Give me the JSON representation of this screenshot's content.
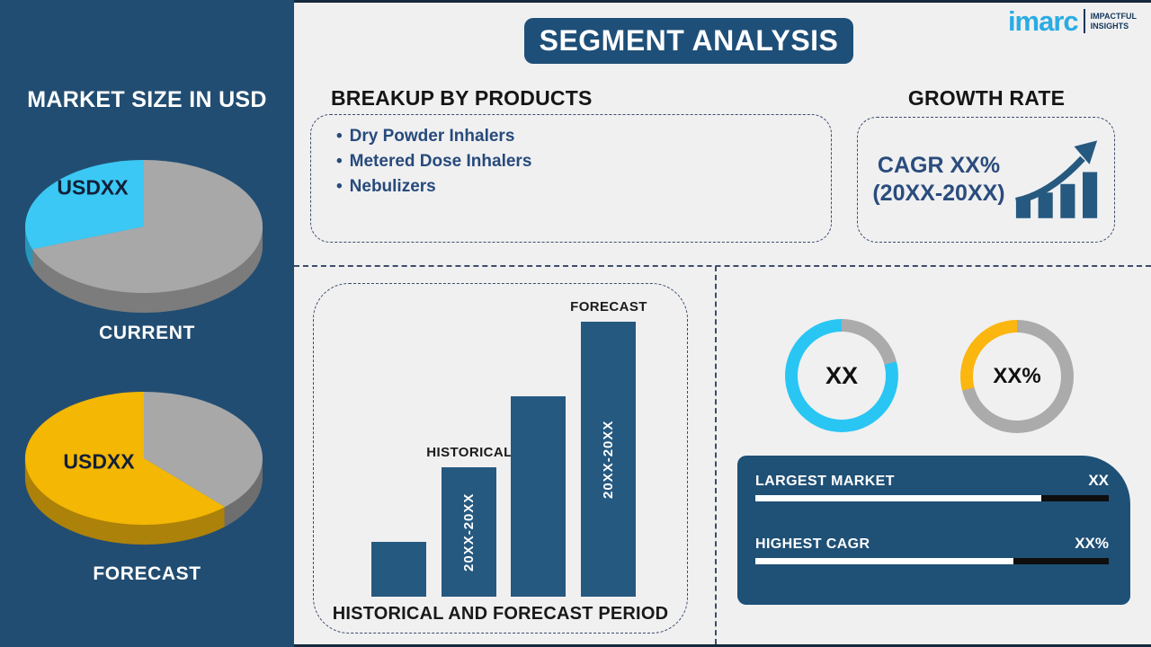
{
  "header": {
    "title": "SEGMENT ANALYSIS"
  },
  "logo": {
    "brand": "imarc",
    "tagline_line1": "IMPACTFUL",
    "tagline_line2": "INSIGHTS",
    "brand_color": "#2AACE3"
  },
  "sidebar": {
    "title": "MARKET SIZE IN USD"
  },
  "products": {
    "title": "BREAKUP BY PRODUCTS",
    "items": [
      "Dry Powder Inhalers",
      "Metered Dose Inhalers",
      "Nebulizers"
    ]
  },
  "growth": {
    "title": "GROWTH RATE",
    "cagr_line1": "CAGR XX%",
    "cagr_line2": "(20XX-20XX)"
  },
  "colors": {
    "sidebar_blue": "#224D72",
    "panel_blue": "#1F5076",
    "bar_blue": "#265980",
    "navy_text": "#2A4C7D",
    "cyan": "#3BC8F4",
    "yellow": "#F3B704",
    "gray": "#A8A8A8",
    "background": "#F0F0F1"
  },
  "chart_data": [
    {
      "id": "current-pie",
      "type": "pie",
      "style": "3d",
      "title": "CURRENT",
      "data_label": "USDXX",
      "slices": [
        {
          "name": "remaining-market",
          "color": "#A8A8A8",
          "side_color": "#7C7C7C",
          "start_deg": 0,
          "end_deg": 250,
          "pct": 69
        },
        {
          "name": "highlighted-segment",
          "color": "#3BC8F4",
          "side_color": "#2B96B9",
          "start_deg": 250,
          "end_deg": 360,
          "pct": 31
        }
      ]
    },
    {
      "id": "forecast-pie",
      "type": "pie",
      "style": "3d",
      "title": "FORECAST",
      "data_label": "USDXX",
      "slices": [
        {
          "name": "remaining-market",
          "color": "#A8A8A8",
          "side_color": "#6F6F6F",
          "start_deg": 0,
          "end_deg": 137,
          "pct": 38
        },
        {
          "name": "highlighted-segment",
          "color": "#F3B704",
          "side_color": "#AD820A",
          "start_deg": 137,
          "end_deg": 360,
          "pct": 62
        }
      ]
    },
    {
      "id": "period-bars",
      "type": "bar",
      "caption": "HISTORICAL AND FORECAST PERIOD",
      "bar_color": "#265980",
      "values_rel": [
        20,
        47,
        73,
        100
      ],
      "categories": [
        "",
        "20XX-20XX",
        "",
        "20XX-20XX"
      ],
      "above_labels": [
        "",
        "HISTORICAL",
        "",
        "FORECAST"
      ]
    },
    {
      "id": "donut-largest-market",
      "type": "donut",
      "center_label": "XX",
      "segments": [
        {
          "name": "rest",
          "color": "#ABABAB",
          "pct": 21
        },
        {
          "name": "share",
          "color": "#29C6F4",
          "pct": 79
        }
      ]
    },
    {
      "id": "donut-highest-cagr",
      "type": "donut",
      "center_label": "XX%",
      "segments": [
        {
          "name": "rest",
          "color": "#ABABAB",
          "pct": 71
        },
        {
          "name": "share",
          "color": "#FBB60F",
          "pct": 29
        }
      ]
    },
    {
      "id": "market-meters",
      "type": "progress",
      "rows": [
        {
          "label": "LARGEST MARKET",
          "value": "XX",
          "fill_pct": 81
        },
        {
          "label": "HIGHEST CAGR",
          "value": "XX%",
          "fill_pct": 73
        }
      ]
    }
  ]
}
